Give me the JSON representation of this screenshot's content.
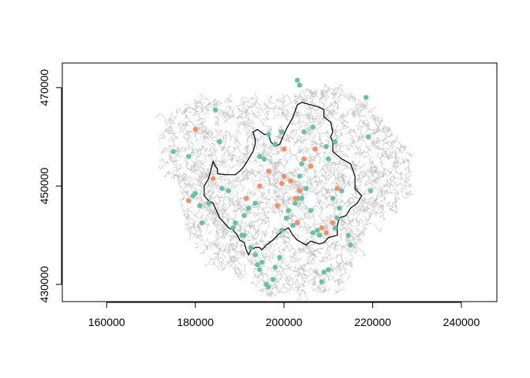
{
  "chart_data": {
    "type": "scatter",
    "title": "",
    "xlabel": "",
    "ylabel": "",
    "xlim": [
      150000,
      248000
    ],
    "ylim": [
      426500,
      475000
    ],
    "x_ticks": [
      160000,
      180000,
      200000,
      220000,
      240000
    ],
    "y_ticks": [
      430000,
      450000,
      470000
    ],
    "x_tick_labels": [
      "160000",
      "180000",
      "200000",
      "220000",
      "240000"
    ],
    "y_tick_labels": [
      "430000",
      "450000",
      "470000"
    ],
    "grid": false,
    "legend": "none",
    "colors": {
      "network": "#bebebe",
      "boundary": "#000000",
      "series_green": "#66c2a5",
      "series_orange": "#fc8d62"
    },
    "boundary": {
      "x": [
        184000,
        184500,
        185000,
        185000,
        187000,
        189000,
        190000,
        191000,
        192000,
        193000,
        193500,
        193500,
        193000,
        194000,
        195500,
        196500,
        197000,
        198000,
        199000,
        200500,
        202000,
        203000,
        204000,
        206000,
        208000,
        209000,
        209000,
        210500,
        211000,
        210500,
        211000,
        211000,
        213000,
        215000,
        216000,
        216000,
        217500,
        216500,
        215000,
        214000,
        212500,
        212000,
        212000,
        210000,
        209000,
        208000,
        207000,
        206000,
        205000,
        203000,
        202000,
        201000,
        200000,
        198500,
        197500,
        196000,
        195000,
        194500,
        193500,
        192500,
        192000,
        191500,
        191000,
        190000,
        189500,
        188500,
        187500,
        186500,
        185500,
        185000,
        184500,
        184000,
        183000,
        182000,
        182000,
        183000,
        184000
      ],
      "y": [
        455000,
        454000,
        453500,
        452500,
        452300,
        452300,
        453000,
        454000,
        455500,
        457000,
        458500,
        459500,
        461000,
        461500,
        460500,
        460500,
        459000,
        458000,
        458500,
        461500,
        464000,
        466500,
        467000,
        466500,
        466000,
        465500,
        464000,
        463000,
        461000,
        460000,
        459000,
        457000,
        455500,
        454500,
        452000,
        449500,
        448000,
        446500,
        445500,
        444000,
        443500,
        442000,
        440000,
        439500,
        438500,
        438200,
        438500,
        438800,
        438000,
        439000,
        440000,
        441500,
        441000,
        440000,
        439000,
        438000,
        437000,
        437500,
        437500,
        437000,
        436000,
        437000,
        438500,
        439000,
        440000,
        441000,
        441500,
        442500,
        443500,
        444500,
        445500,
        446500,
        447000,
        448000,
        450000,
        451500,
        455000
      ]
    },
    "series": [
      {
        "color": "#66c2a5",
        "x": [
          175000,
          178500,
          179500,
          181000,
          183000,
          186000,
          184500,
          185500,
          180000,
          181500,
          187500,
          189000,
          191000,
          188500,
          190500,
          192500,
          193500,
          194500,
          194000,
          195000,
          196000,
          196500,
          197500,
          198000,
          199000,
          199500,
          200500,
          201000,
          202000,
          202500,
          203000,
          203500,
          204000,
          204000,
          205000,
          206000,
          206500,
          207500,
          208000,
          209000,
          208500,
          210000,
          211500,
          212000,
          212500,
          211000,
          213000,
          214500,
          215000,
          219500,
          218500,
          219000,
          211500,
          210000,
          209500,
          206500,
          204500,
          203500,
          203000,
          199500,
          198000,
          196500,
          195500,
          194500,
          193500,
          192000,
          191000
        ],
        "y": [
          457000,
          456000,
          448000,
          446000,
          446500,
          449500,
          465500,
          459000,
          448500,
          442500,
          449000,
          442500,
          440000,
          441500,
          440000,
          437500,
          436000,
          433000,
          434000,
          434500,
          430000,
          429500,
          431000,
          433500,
          435500,
          441000,
          443500,
          445000,
          442000,
          446500,
          447500,
          452000,
          454500,
          447500,
          449500,
          445000,
          440500,
          441000,
          440000,
          432500,
          430500,
          433000,
          441500,
          443500,
          445500,
          447500,
          449000,
          440000,
          438000,
          449000,
          468000,
          460000,
          459000,
          455500,
          458000,
          462000,
          461000,
          470500,
          471500,
          461000,
          458500,
          460500,
          455500,
          456000,
          446500,
          445500,
          444000
        ]
      },
      {
        "color": "#fc8d62",
        "x": [
          180000,
          178500,
          184000,
          191500,
          194500,
          198500,
          199500,
          200000,
          201500,
          202500,
          203500,
          204500,
          206000,
          207000,
          208500,
          209500,
          211000,
          212000,
          203000,
          200000,
          196500
        ],
        "y": [
          461500,
          447000,
          451500,
          447500,
          450000,
          446000,
          450500,
          452000,
          451000,
          447500,
          449000,
          455500,
          454000,
          457500,
          441500,
          440500,
          442500,
          449500,
          442500,
          457500,
          453000
        ]
      }
    ]
  }
}
